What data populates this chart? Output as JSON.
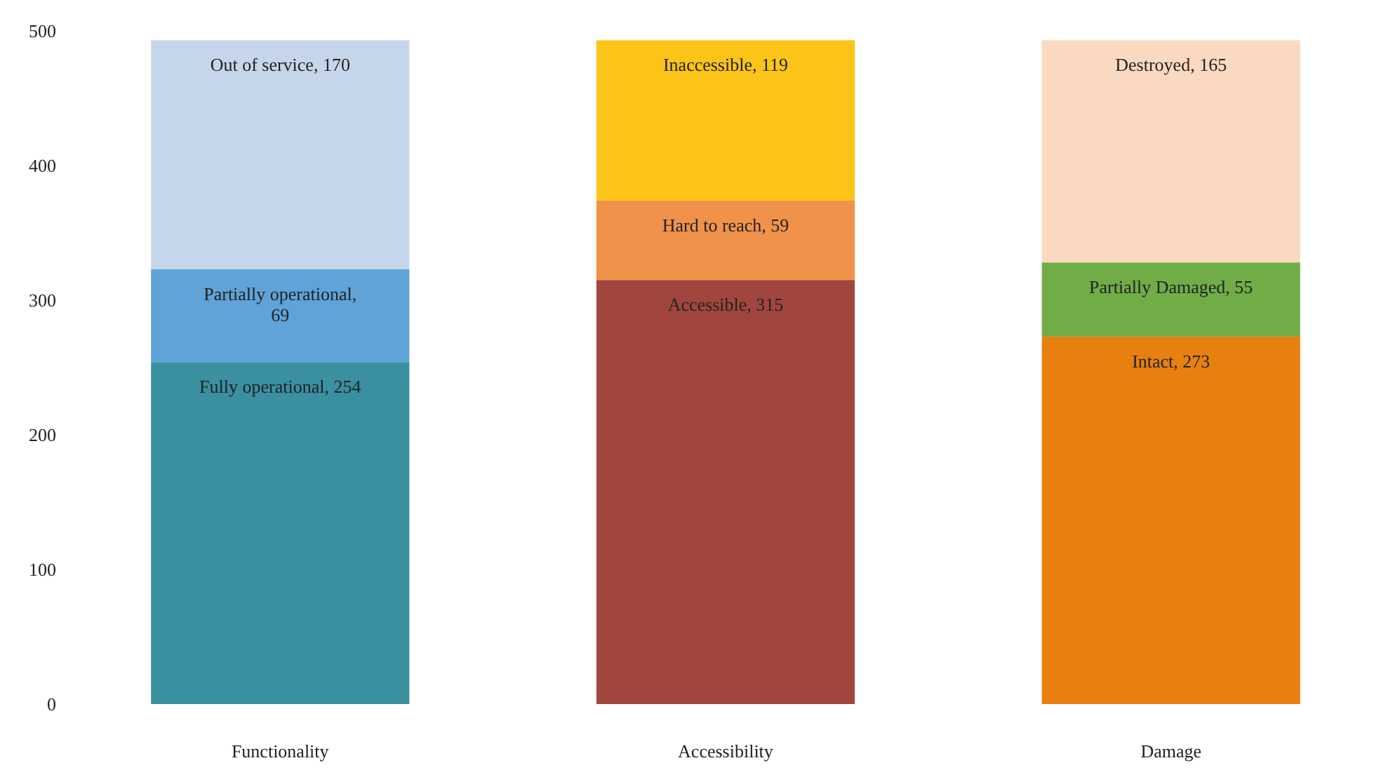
{
  "chart_data": {
    "type": "bar",
    "stacked": true,
    "categories": [
      "Functionality",
      "Accessibility",
      "Damage"
    ],
    "ylim": [
      0,
      500
    ],
    "yticks": [
      0,
      100,
      200,
      300,
      400,
      500
    ],
    "grid": false,
    "series": [
      {
        "colors": [
          "#3a8fa0",
          "#a0463f",
          "#e8800f"
        ],
        "values": [
          254,
          315,
          273
        ],
        "value_labels": [
          "Fully operational, 254",
          "Accessible,  315",
          "Intact, 273"
        ]
      },
      {
        "colors": [
          "#5fa3d8",
          "#f0924a",
          "#70ad47"
        ],
        "values": [
          69,
          59,
          55
        ],
        "value_labels": [
          "Partially operational, 69",
          "Hard to reach, 59",
          "Partially Damaged, 55"
        ]
      },
      {
        "colors": [
          "#c6d6ea",
          "#fcc419",
          "#fbd9c0"
        ],
        "values": [
          170,
          119,
          165
        ],
        "value_labels": [
          "Out of service, 170",
          "Inaccessible, 119",
          "Destroyed, 165"
        ]
      }
    ]
  }
}
